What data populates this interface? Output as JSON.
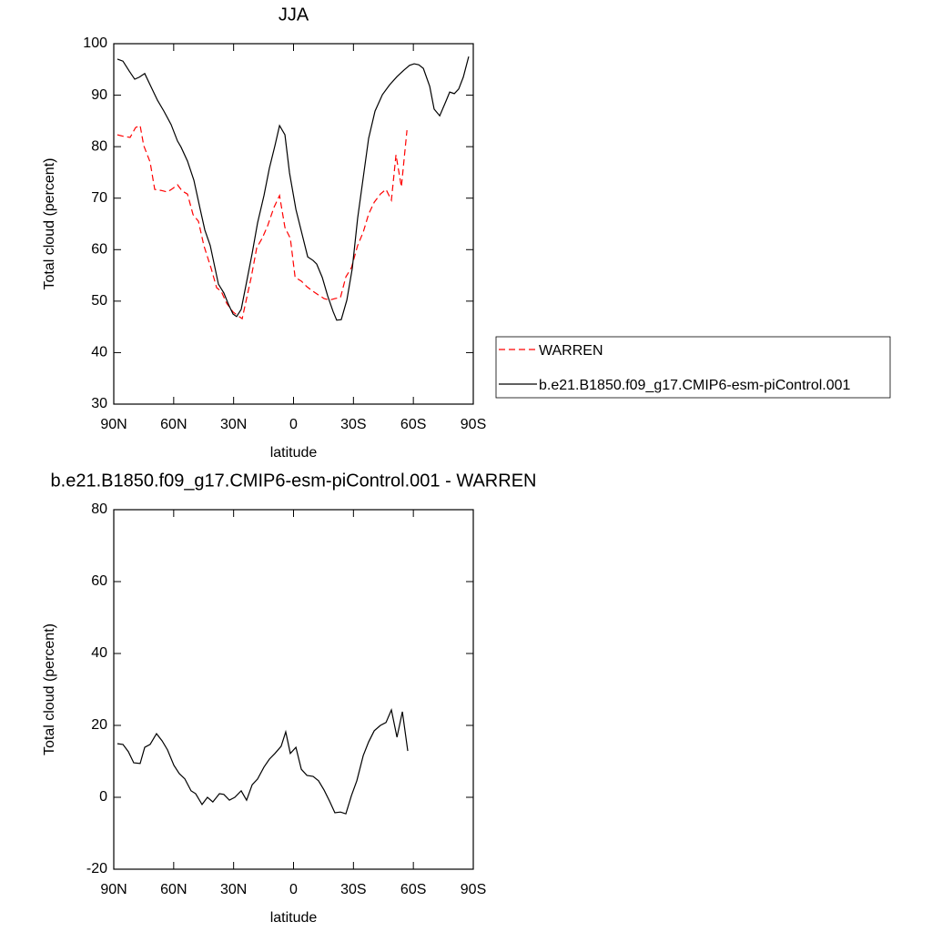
{
  "chart_data": [
    {
      "type": "line",
      "title": "JJA",
      "xlabel": "latitude",
      "ylabel": "Total cloud (percent)",
      "xlim": [
        90,
        -90
      ],
      "xticks": [
        {
          "value": 90,
          "label": "90N"
        },
        {
          "value": 60,
          "label": "60N"
        },
        {
          "value": 30,
          "label": "30N"
        },
        0,
        {
          "value": -30,
          "label": "30S"
        },
        {
          "value": -60,
          "label": "60S"
        },
        {
          "value": -90,
          "label": "90S"
        }
      ],
      "ylim": [
        30,
        100
      ],
      "yticks": [
        30,
        40,
        50,
        60,
        70,
        80,
        90,
        100
      ],
      "legend": "right",
      "series": [
        {
          "name": "WARREN",
          "color": "#ff0000",
          "linestyle": "dashed",
          "x": [
            88.2,
            85.0,
            81.8,
            79.1,
            76.8,
            75.0,
            71.8,
            69.5,
            66.3,
            63.1,
            60.4,
            58.1,
            55.8,
            53.1,
            50.3,
            47.6,
            44.9,
            41.2,
            38.5,
            36.2,
            33.5,
            30.3,
            27.6,
            25.7,
            23.9,
            21.2,
            18.4,
            15.7,
            13.0,
            9.8,
            7.0,
            4.3,
            1.6,
            -0.8,
            -3.9,
            -6.7,
            -9.8,
            -12.5,
            -15.3,
            -18.0,
            -20.7,
            -23.5,
            -26.2,
            -29.0,
            -32.1,
            -34.9,
            -37.6,
            -40.4,
            -43.5,
            -46.3,
            -49.0,
            -51.3,
            -54.0,
            -56.8
          ],
          "values": [
            82.3,
            82.0,
            81.8,
            83.7,
            84.1,
            80.2,
            77.0,
            71.7,
            71.5,
            71.2,
            71.9,
            72.6,
            71.4,
            70.8,
            66.8,
            65.5,
            60.8,
            56.3,
            52.6,
            51.9,
            49.6,
            47.9,
            47.1,
            46.6,
            49.8,
            54.6,
            60.4,
            62.2,
            64.6,
            68.2,
            70.5,
            64.3,
            62.2,
            54.6,
            53.9,
            52.8,
            51.9,
            51.2,
            50.5,
            50.2,
            50.5,
            50.7,
            54.7,
            56.5,
            60.8,
            63.4,
            66.9,
            69.2,
            70.8,
            71.7,
            69.6,
            78.4,
            72.2,
            83.2
          ]
        },
        {
          "name": "b.e21.B1850.f09_g17.CMIP6-esm-piControl.001",
          "color": "#000000",
          "linestyle": "solid",
          "x": [
            88.2,
            85.4,
            82.3,
            79.5,
            77.2,
            74.5,
            71.8,
            68.1,
            64.9,
            61.3,
            58.1,
            56.3,
            53.1,
            49.9,
            46.7,
            44.4,
            41.7,
            37.6,
            34.9,
            32.6,
            30.3,
            28.5,
            26.2,
            23.5,
            20.7,
            18.0,
            14.8,
            12.1,
            9.3,
            7.0,
            4.3,
            2.0,
            -1.2,
            -4.8,
            -7.1,
            -9.8,
            -11.6,
            -14.4,
            -17.1,
            -19.8,
            -21.6,
            -23.9,
            -26.7,
            -29.4,
            -32.1,
            -34.9,
            -37.6,
            -40.8,
            -44.5,
            -48.1,
            -51.8,
            -55.4,
            -58.1,
            -60.4,
            -62.7,
            -65.0,
            -68.2,
            -70.4,
            -73.2,
            -76.4,
            -78.2,
            -80.5,
            -82.7,
            -85.0,
            -87.7
          ],
          "values": [
            97.0,
            96.6,
            94.7,
            93.1,
            93.5,
            94.2,
            92.0,
            89.0,
            86.9,
            84.3,
            81.1,
            79.9,
            77.2,
            73.5,
            67.8,
            63.8,
            60.8,
            53.3,
            51.6,
            49.4,
            47.5,
            47.0,
            48.4,
            53.7,
            59.3,
            65.2,
            70.5,
            75.8,
            80.2,
            84.1,
            82.3,
            74.9,
            67.8,
            62.2,
            58.6,
            57.9,
            57.2,
            54.6,
            51.0,
            48.0,
            46.3,
            46.4,
            50.2,
            56.3,
            66.1,
            74.0,
            81.6,
            86.9,
            90.1,
            92.0,
            93.6,
            94.9,
            95.8,
            96.1,
            95.9,
            95.2,
            91.7,
            87.3,
            86.0,
            88.9,
            90.6,
            90.3,
            91.2,
            93.5,
            97.5
          ]
        }
      ]
    },
    {
      "type": "line",
      "title": "b.e21.B1850.f09_g17.CMIP6-esm-piControl.001 - WARREN",
      "xlabel": "latitude",
      "ylabel": "Total cloud (percent)",
      "xlim": [
        90,
        -90
      ],
      "xticks": [
        {
          "value": 90,
          "label": "90N"
        },
        {
          "value": 60,
          "label": "60N"
        },
        {
          "value": 30,
          "label": "30N"
        },
        0,
        {
          "value": -30,
          "label": "30S"
        },
        {
          "value": -60,
          "label": "60S"
        },
        {
          "value": -90,
          "label": "90S"
        }
      ],
      "ylim": [
        -20,
        80
      ],
      "yticks": [
        -20,
        0,
        20,
        40,
        60,
        80
      ],
      "color": "#000000",
      "x": [
        88.2,
        85.4,
        82.7,
        80.0,
        76.8,
        74.5,
        71.8,
        68.6,
        65.8,
        63.1,
        59.9,
        57.2,
        54.4,
        51.3,
        49.0,
        45.8,
        43.1,
        40.4,
        37.1,
        34.9,
        32.1,
        29.4,
        26.2,
        23.5,
        20.7,
        18.0,
        14.8,
        12.1,
        9.3,
        6.2,
        3.9,
        1.6,
        -1.2,
        -3.9,
        -6.7,
        -9.8,
        -12.5,
        -15.3,
        -18.0,
        -20.7,
        -23.5,
        -26.2,
        -29.0,
        -31.7,
        -34.9,
        -37.6,
        -40.4,
        -43.5,
        -46.3,
        -49.0,
        -51.8,
        -54.5,
        -57.2
      ],
      "values": [
        14.9,
        14.7,
        12.7,
        9.6,
        9.4,
        13.9,
        14.7,
        17.7,
        15.7,
        13.2,
        8.9,
        6.6,
        5.1,
        1.8,
        1.0,
        -2.0,
        0,
        -1.3,
        1.0,
        0.8,
        -0.8,
        0,
        1.8,
        -0.8,
        3.5,
        5.1,
        8.4,
        10.6,
        12.2,
        14.2,
        18.2,
        12.2,
        13.9,
        7.8,
        6.1,
        5.8,
        4.6,
        2.0,
        -1.0,
        -4.3,
        -4.1,
        -4.6,
        0.5,
        4.6,
        11.6,
        15.4,
        18.5,
        20.0,
        20.8,
        24.3,
        16.7,
        23.8,
        12.9
      ]
    }
  ]
}
